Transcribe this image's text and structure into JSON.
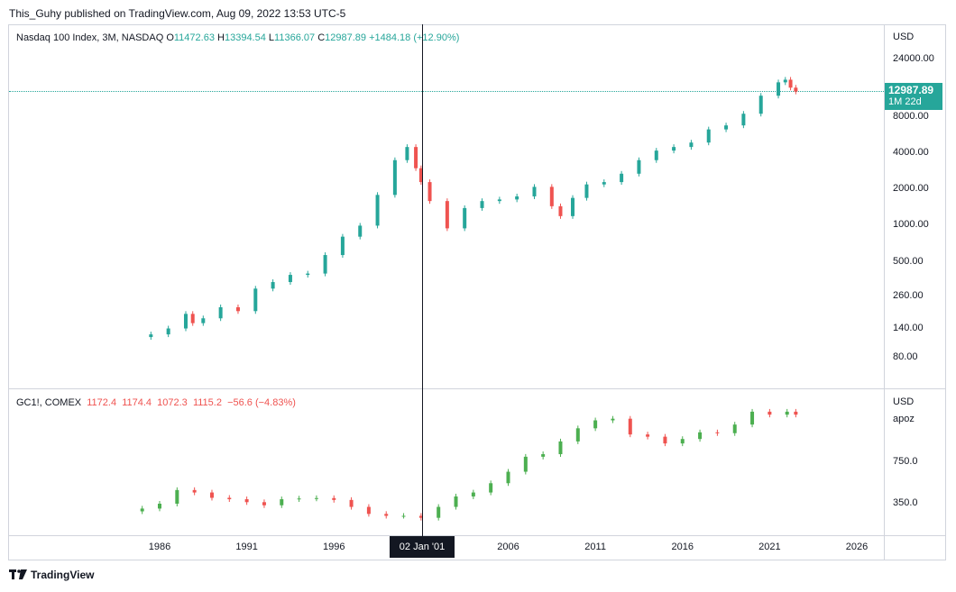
{
  "header": "This_Guhy published on TradingView.com, Aug 09, 2022 13:53 UTC-5",
  "footer": {
    "logo_text": "TradingView",
    "logo_icon": "tradingview-logo-icon"
  },
  "colors": {
    "up": "#26a69a",
    "down": "#ef5350",
    "gold_up": "#4caf50"
  },
  "top_legend": {
    "symbol": "Nasdaq 100 Index, 3M, NASDAQ",
    "o_label": "O",
    "o": "11472.63",
    "h_label": "H",
    "h": "13394.54",
    "l_label": "L",
    "l": "11366.07",
    "c_label": "C",
    "c": "12987.89",
    "change": "+1484.18 (+12.90%)"
  },
  "bottom_legend": {
    "symbol": "GC1!, COMEX",
    "o": "1172.4",
    "h": "1174.4",
    "l": "1072.3",
    "c": "1115.2",
    "change": "−56.6 (−4.83%)"
  },
  "price_tag": {
    "price": "12987.89",
    "countdown": "1M 22d"
  },
  "crosshair_date": "02 Jan '01",
  "bottom_axis": {
    "currency": "USD",
    "scale_label": "apoz"
  },
  "chart_data": [
    {
      "type": "candlestick",
      "title": "Nasdaq 100 Index, 3M, NASDAQ",
      "scale": "log",
      "y_axis_currency": "USD",
      "y_ticks": [
        "24000.00",
        "8000.00",
        "4000.00",
        "2000.00",
        "1000.00",
        "500.00",
        "260.00",
        "140.00",
        "80.00"
      ],
      "y_tick_values": [
        24000,
        8000,
        4000,
        2000,
        1000,
        500,
        260,
        140,
        80
      ],
      "series": [
        {
          "x": 1985.5,
          "close": 125
        },
        {
          "x": 1986.5,
          "close": 140
        },
        {
          "x": 1987.5,
          "close": 185
        },
        {
          "x": 1987.9,
          "close": 155
        },
        {
          "x": 1988.5,
          "close": 170
        },
        {
          "x": 1989.5,
          "close": 210
        },
        {
          "x": 1990.5,
          "close": 195
        },
        {
          "x": 1991.5,
          "close": 300
        },
        {
          "x": 1992.5,
          "close": 340
        },
        {
          "x": 1993.5,
          "close": 390
        },
        {
          "x": 1994.5,
          "close": 400
        },
        {
          "x": 1995.5,
          "close": 570
        },
        {
          "x": 1996.5,
          "close": 810
        },
        {
          "x": 1997.5,
          "close": 1000
        },
        {
          "x": 1998.5,
          "close": 1800
        },
        {
          "x": 1999.5,
          "close": 3500
        },
        {
          "x": 2000.2,
          "close": 4500
        },
        {
          "x": 2000.7,
          "close": 3000
        },
        {
          "x": 2001.0,
          "close": 2300
        },
        {
          "x": 2001.5,
          "close": 1600
        },
        {
          "x": 2002.5,
          "close": 950
        },
        {
          "x": 2003.5,
          "close": 1400
        },
        {
          "x": 2004.5,
          "close": 1600
        },
        {
          "x": 2005.5,
          "close": 1650
        },
        {
          "x": 2006.5,
          "close": 1750
        },
        {
          "x": 2007.5,
          "close": 2100
        },
        {
          "x": 2008.5,
          "close": 1450
        },
        {
          "x": 2009.0,
          "close": 1200
        },
        {
          "x": 2009.7,
          "close": 1700
        },
        {
          "x": 2010.5,
          "close": 2200
        },
        {
          "x": 2011.5,
          "close": 2300
        },
        {
          "x": 2012.5,
          "close": 2700
        },
        {
          "x": 2013.5,
          "close": 3500
        },
        {
          "x": 2014.5,
          "close": 4200
        },
        {
          "x": 2015.5,
          "close": 4500
        },
        {
          "x": 2016.5,
          "close": 4900
        },
        {
          "x": 2017.5,
          "close": 6300
        },
        {
          "x": 2018.5,
          "close": 6800
        },
        {
          "x": 2019.5,
          "close": 8500
        },
        {
          "x": 2020.5,
          "close": 12000
        },
        {
          "x": 2021.5,
          "close": 15500
        },
        {
          "x": 2021.9,
          "close": 16300
        },
        {
          "x": 2022.2,
          "close": 14000
        },
        {
          "x": 2022.5,
          "close": 12987.89
        }
      ]
    },
    {
      "type": "candlestick",
      "title": "GC1!, COMEX",
      "scale": "log",
      "y_axis_currency": "USD",
      "y_ticks": [
        "750.0",
        "350.0"
      ],
      "y_tick_values": [
        750,
        350
      ],
      "series": [
        {
          "x": 1985.0,
          "close": 320
        },
        {
          "x": 1986.0,
          "close": 350
        },
        {
          "x": 1987.0,
          "close": 450
        },
        {
          "x": 1988.0,
          "close": 430
        },
        {
          "x": 1989.0,
          "close": 390
        },
        {
          "x": 1990.0,
          "close": 380
        },
        {
          "x": 1991.0,
          "close": 360
        },
        {
          "x": 1992.0,
          "close": 340
        },
        {
          "x": 1993.0,
          "close": 380
        },
        {
          "x": 1994.0,
          "close": 385
        },
        {
          "x": 1995.0,
          "close": 388
        },
        {
          "x": 1996.0,
          "close": 375
        },
        {
          "x": 1997.0,
          "close": 330
        },
        {
          "x": 1998.0,
          "close": 290
        },
        {
          "x": 1999.0,
          "close": 280
        },
        {
          "x": 2000.0,
          "close": 280
        },
        {
          "x": 2001.0,
          "close": 270
        },
        {
          "x": 2002.0,
          "close": 330
        },
        {
          "x": 2003.0,
          "close": 400
        },
        {
          "x": 2004.0,
          "close": 430
        },
        {
          "x": 2005.0,
          "close": 510
        },
        {
          "x": 2006.0,
          "close": 630
        },
        {
          "x": 2007.0,
          "close": 830
        },
        {
          "x": 2008.0,
          "close": 870
        },
        {
          "x": 2009.0,
          "close": 1100
        },
        {
          "x": 2010.0,
          "close": 1400
        },
        {
          "x": 2011.0,
          "close": 1620
        },
        {
          "x": 2012.0,
          "close": 1670
        },
        {
          "x": 2013.0,
          "close": 1250
        },
        {
          "x": 2014.0,
          "close": 1200
        },
        {
          "x": 2015.0,
          "close": 1060
        },
        {
          "x": 2016.0,
          "close": 1150
        },
        {
          "x": 2017.0,
          "close": 1300
        },
        {
          "x": 2018.0,
          "close": 1280
        },
        {
          "x": 2019.0,
          "close": 1500
        },
        {
          "x": 2020.0,
          "close": 1900
        },
        {
          "x": 2021.0,
          "close": 1800
        },
        {
          "x": 2022.0,
          "close": 1900
        },
        {
          "x": 2022.5,
          "close": 1800
        }
      ]
    }
  ],
  "x_axis": {
    "ticks": [
      "1986",
      "1991",
      "1996",
      "2006",
      "2011",
      "2016",
      "2021",
      "2026"
    ],
    "tick_values": [
      1986,
      1991,
      1996,
      2006,
      2011,
      2016,
      2021,
      2026
    ]
  }
}
